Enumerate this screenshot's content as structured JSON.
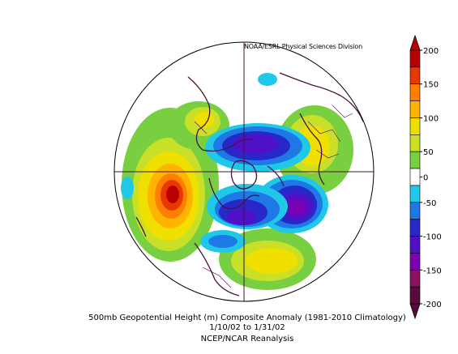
{
  "map": {
    "credit": "NOAA/ESRL Physical Sciences Division",
    "caption_line1": "500mb Geopotential Height (m) Composite Anomaly (1981-2010 Climatology)",
    "caption_line2": "1/10/02  to 1/31/02",
    "caption_line3": "NCEP/NCAR Reanalysis",
    "projection": "north-polar-stereographic"
  },
  "colorbar": {
    "labels": [
      "200",
      "150",
      "100",
      "50",
      "0",
      "-50",
      "-100",
      "-150",
      "-200"
    ],
    "bins": [
      {
        "range": "175 to 200",
        "color": "#b80000"
      },
      {
        "range": "150 to 175",
        "color": "#e83800"
      },
      {
        "range": "125 to 150",
        "color": "#ff7f00"
      },
      {
        "range": "100 to 125",
        "color": "#ffb400"
      },
      {
        "range": "75 to 100",
        "color": "#f0e000"
      },
      {
        "range": "50 to 75",
        "color": "#c8e028"
      },
      {
        "range": "25 to 50",
        "color": "#78d040"
      },
      {
        "range": "-25 to 25",
        "color": "#ffffff"
      },
      {
        "range": "-50 to -25",
        "color": "#20c8e8"
      },
      {
        "range": "-75 to -50",
        "color": "#1e78e6"
      },
      {
        "range": "-100 to -75",
        "color": "#2828c8"
      },
      {
        "range": "-125 to -100",
        "color": "#5010c8"
      },
      {
        "range": "-150 to -125",
        "color": "#7a00b4"
      },
      {
        "range": "-175 to -150",
        "color": "#8c1060"
      },
      {
        "range": "-200 to -175",
        "color": "#5a0a3a"
      }
    ]
  }
}
